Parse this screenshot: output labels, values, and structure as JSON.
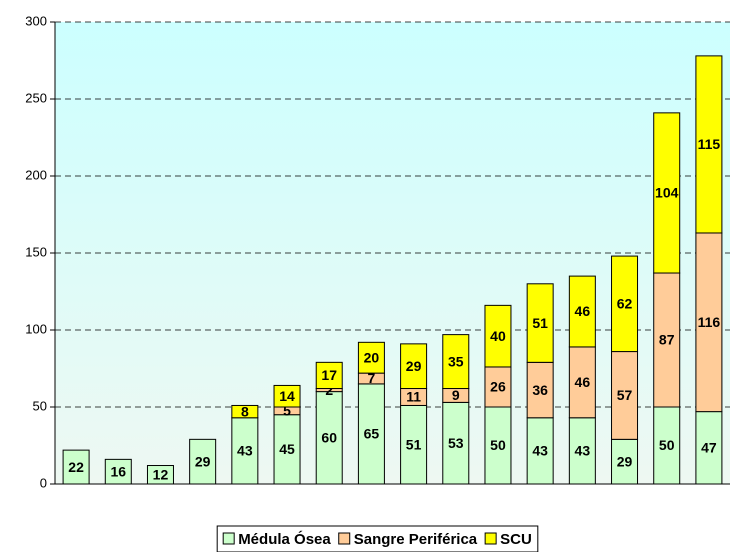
{
  "chart_data": {
    "type": "stacked_bar",
    "categories": [
      null,
      null,
      null,
      null,
      null,
      null,
      null,
      null,
      null,
      null,
      null,
      null,
      null,
      null,
      null,
      null
    ],
    "series": [
      {
        "name": "Médula Ósea",
        "color": "#ccffcc",
        "values": [
          22,
          16,
          12,
          29,
          43,
          45,
          60,
          65,
          51,
          53,
          50,
          43,
          43,
          29,
          50,
          47
        ]
      },
      {
        "name": "Sangre Periférica",
        "color": "#ffcc99",
        "values": [
          null,
          null,
          null,
          null,
          null,
          5,
          2,
          7,
          11,
          9,
          26,
          36,
          46,
          57,
          87,
          116
        ]
      },
      {
        "name": "SCU",
        "color": "#ffff00",
        "values": [
          null,
          null,
          null,
          null,
          8,
          14,
          17,
          20,
          29,
          35,
          40,
          51,
          46,
          62,
          104,
          115
        ]
      }
    ],
    "ylim": [
      0,
      300
    ],
    "yticks": [
      0,
      50,
      100,
      150,
      200,
      250,
      300
    ],
    "grid": true,
    "legend": "bottom"
  }
}
